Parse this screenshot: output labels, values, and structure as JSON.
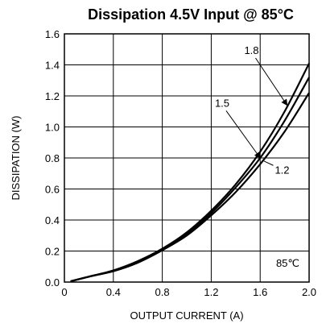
{
  "chart_data": {
    "type": "line",
    "title": "Dissipation 4.5V Input @ 85°C",
    "xlabel": "OUTPUT CURRENT (A)",
    "ylabel": "DISSIPATION (W)",
    "xlim": [
      0,
      2.0
    ],
    "ylim": [
      0,
      1.6
    ],
    "x_ticks": [
      "0",
      "0.4",
      "0.8",
      "1.2",
      "1.6",
      "2.0"
    ],
    "y_ticks": [
      "0.0",
      "0.2",
      "0.4",
      "0.6",
      "0.8",
      "1.0",
      "1.2",
      "1.4",
      "1.6"
    ],
    "grid": true,
    "series": [
      {
        "name": "1.8",
        "x": [
          0.05,
          0.2,
          0.4,
          0.6,
          0.8,
          1.0,
          1.2,
          1.4,
          1.6,
          1.8,
          2.0
        ],
        "y": [
          0.005,
          0.035,
          0.075,
          0.135,
          0.215,
          0.32,
          0.46,
          0.63,
          0.84,
          1.1,
          1.41
        ]
      },
      {
        "name": "1.5",
        "x": [
          0.05,
          0.2,
          0.4,
          0.6,
          0.8,
          1.0,
          1.2,
          1.4,
          1.6,
          1.8,
          2.0
        ],
        "y": [
          0.005,
          0.035,
          0.073,
          0.13,
          0.21,
          0.31,
          0.445,
          0.61,
          0.8,
          1.04,
          1.32
        ]
      },
      {
        "name": "1.2",
        "x": [
          0.05,
          0.2,
          0.4,
          0.6,
          0.8,
          1.0,
          1.2,
          1.4,
          1.6,
          1.8,
          2.0
        ],
        "y": [
          0.005,
          0.035,
          0.07,
          0.125,
          0.205,
          0.3,
          0.43,
          0.58,
          0.76,
          0.97,
          1.22
        ]
      }
    ],
    "annotations": [
      {
        "text": "1.8",
        "target_series": "1.8",
        "label_x": 1.47,
        "label_y": 1.47,
        "point_x": 1.82,
        "point_y": 1.14,
        "arrow": true
      },
      {
        "text": "1.5",
        "target_series": "1.5",
        "label_x": 1.23,
        "label_y": 1.13,
        "point_x": 1.6,
        "point_y": 0.8,
        "arrow": true
      },
      {
        "text": "1.2",
        "target_series": "1.2",
        "label_x": 1.72,
        "label_y": 0.7,
        "point_x": 1.63,
        "point_y": 0.78,
        "arrow": false
      },
      {
        "text": "85℃",
        "label_x": 1.73,
        "label_y": 0.1,
        "arrow": false
      }
    ]
  }
}
